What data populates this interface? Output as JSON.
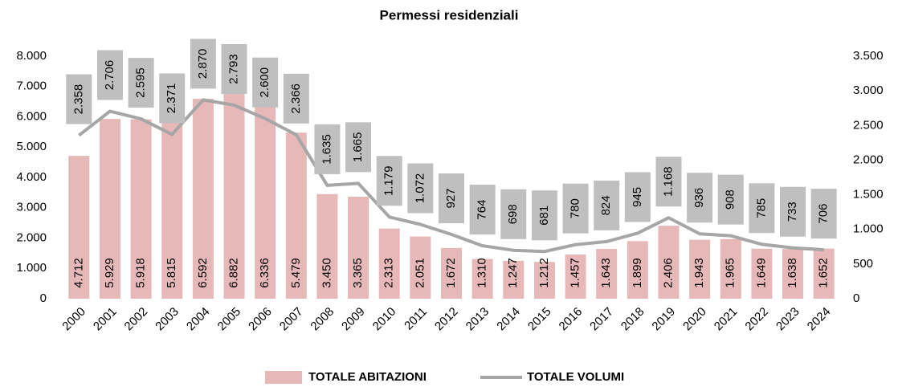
{
  "chart_data": {
    "type": "bar",
    "title": "Permessi residenziali",
    "categories": [
      "2000",
      "2001",
      "2002",
      "2003",
      "2004",
      "2005",
      "2006",
      "2007",
      "2008",
      "2009",
      "2010",
      "2011",
      "2012",
      "2013",
      "2014",
      "2015",
      "2016",
      "2017",
      "2018",
      "2019",
      "2020",
      "2021",
      "2022",
      "2023",
      "2024"
    ],
    "series": [
      {
        "name": "TOTALE ABITAZIONI",
        "type": "bar",
        "color": "#e6b8b7",
        "values": [
          4712,
          5929,
          5918,
          5815,
          6592,
          6882,
          6336,
          5479,
          3450,
          3365,
          2313,
          2051,
          1672,
          1310,
          1247,
          1212,
          1457,
          1643,
          1899,
          2406,
          1943,
          1965,
          1649,
          1638,
          1652
        ],
        "value_labels": [
          "4.712",
          "5.929",
          "5.918",
          "5.815",
          "6.592",
          "6.882",
          "6.336",
          "5.479",
          "3.450",
          "3.365",
          "2.313",
          "2.051",
          "1.672",
          "1.310",
          "1.247",
          "1.212",
          "1.457",
          "1.643",
          "1.899",
          "2.406",
          "1.943",
          "1.965",
          "1.649",
          "1.638",
          "1.652"
        ]
      },
      {
        "name": "TOTALE VOLUMI",
        "type": "line",
        "axis": "y2",
        "color": "#a6a6a6",
        "values": [
          2358,
          2706,
          2595,
          2371,
          2870,
          2793,
          2600,
          2366,
          1635,
          1665,
          1179,
          1072,
          927,
          764,
          698,
          681,
          780,
          824,
          945,
          1168,
          936,
          908,
          785,
          733,
          706
        ],
        "value_labels": [
          "2.358",
          "2.706",
          "2.595",
          "2.371",
          "2.870",
          "2.793",
          "2.600",
          "2.366",
          "1.635",
          "1.665",
          "1.179",
          "1.072",
          "927",
          "764",
          "698",
          "681",
          "780",
          "824",
          "945",
          "1.168",
          "936",
          "908",
          "785",
          "733",
          "706"
        ]
      }
    ],
    "ylim": [
      0,
      8000
    ],
    "yticks": [
      0,
      {
        "value": 1000,
        "label": "1.000"
      },
      {
        "value": 2000,
        "label": "2.000"
      },
      {
        "value": 3000,
        "label": "3.000"
      },
      {
        "value": 4000,
        "label": "4.000"
      },
      {
        "value": 5000,
        "label": "5.000"
      },
      {
        "value": 6000,
        "label": "6.000"
      },
      {
        "value": 7000,
        "label": "7.000"
      },
      {
        "value": 8000,
        "label": "8.000"
      }
    ],
    "y2lim": [
      0,
      3500
    ],
    "y2ticks": [
      0,
      500,
      {
        "value": 1000,
        "label": "1.000"
      },
      {
        "value": 1500,
        "label": "1.500"
      },
      {
        "value": 2000,
        "label": "2.000"
      },
      {
        "value": 2500,
        "label": "2.500"
      },
      {
        "value": 3000,
        "label": "3.000"
      },
      {
        "value": 3500,
        "label": "3.500"
      }
    ],
    "legend": "bottom"
  }
}
